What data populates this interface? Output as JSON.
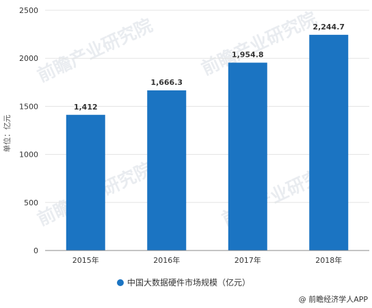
{
  "chart_data": {
    "type": "bar",
    "categories": [
      "2015年",
      "2016年",
      "2017年",
      "2018年"
    ],
    "series": [
      {
        "name": "中国大数据硬件市场规模（亿元）",
        "values": [
          1412,
          1666.3,
          1954.8,
          2244.7
        ],
        "labels": [
          "1,412",
          "1,666.3",
          "1,954.8",
          "2,244.7"
        ],
        "color": "#1b74c2"
      }
    ],
    "ylabel": "单位：亿元",
    "ylim": [
      0,
      2500
    ],
    "yticks": [
      0,
      500,
      1000,
      1500,
      2000,
      2500
    ],
    "grid": true,
    "legend": "bottom"
  },
  "watermark": "前瞻产业研究院",
  "source": "@ 前瞻经济学人APP"
}
